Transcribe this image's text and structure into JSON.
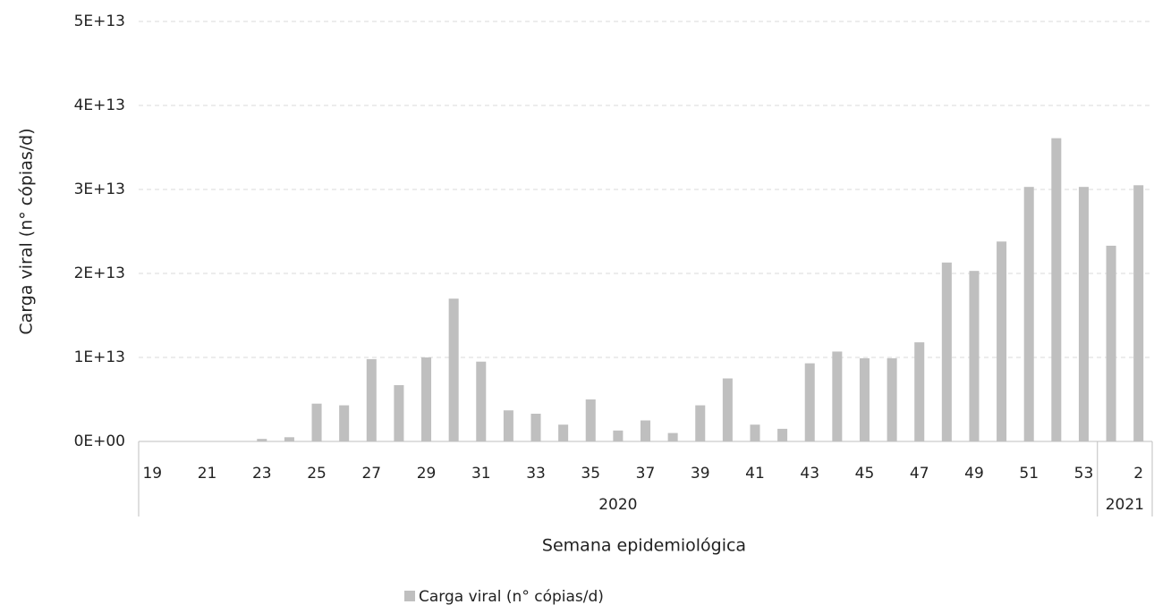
{
  "chart_data": {
    "type": "bar",
    "y_label": "Carga viral (n° cópias/d)",
    "x_label": "Semana epidemiológica",
    "categories": [
      "19",
      null,
      "21",
      null,
      "23",
      null,
      "25",
      null,
      "27",
      null,
      "29",
      null,
      "31",
      null,
      "33",
      null,
      "35",
      null,
      "37",
      null,
      "39",
      null,
      "41",
      null,
      "43",
      null,
      "45",
      null,
      "47",
      null,
      "49",
      null,
      "51",
      null,
      "53",
      null,
      "2"
    ],
    "groups": [
      {
        "label": "2020",
        "span": 35
      },
      {
        "label": "2021",
        "span": 2
      }
    ],
    "series": [
      {
        "name": "Carga viral (n° cópias/d)",
        "color": "#bfbfbf",
        "values": [
          0,
          0,
          0,
          0,
          300000000000.0,
          500000000000.0,
          4500000000000.0,
          4300000000000.0,
          9800000000000.0,
          6700000000000.0,
          10000000000000.0,
          17000000000000.0,
          9500000000000.0,
          3700000000000.0,
          3300000000000.0,
          2000000000000.0,
          5000000000000.0,
          1300000000000.0,
          2500000000000.0,
          1000000000000.0,
          4300000000000.0,
          7500000000000.0,
          2000000000000.0,
          1500000000000.0,
          9300000000000.0,
          10700000000000.0,
          9900000000000.0,
          9900000000000.0,
          11800000000000.0,
          21300000000000.0,
          20300000000000.0,
          23800000000000.0,
          30300000000000.0,
          36100000000000.0,
          30300000000000.0,
          23300000000000.0,
          30500000000000.0
        ]
      }
    ],
    "ylim": [
      0,
      50000000000000.0
    ],
    "yticks": [
      {
        "value": 0,
        "label": "0E+00"
      },
      {
        "value": 10000000000000.0,
        "label": "1E+13"
      },
      {
        "value": 20000000000000.0,
        "label": "2E+13"
      },
      {
        "value": 30000000000000.0,
        "label": "3E+13"
      },
      {
        "value": 40000000000000.0,
        "label": "4E+13"
      },
      {
        "value": 50000000000000.0,
        "label": "5E+13"
      }
    ],
    "grid": true,
    "legend": "bottom"
  }
}
